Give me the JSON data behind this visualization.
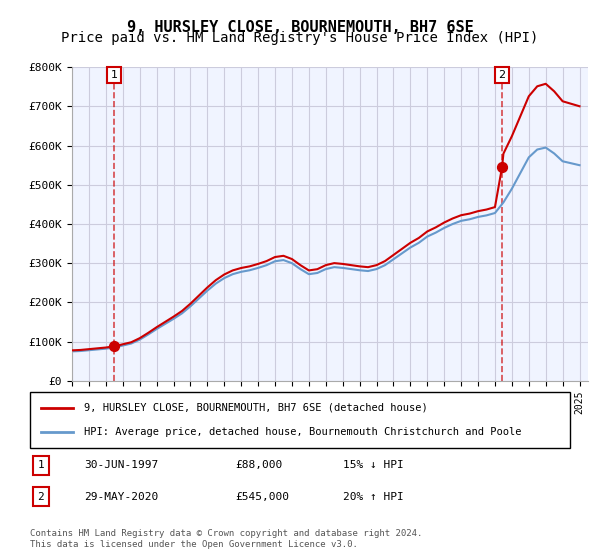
{
  "title": "9, HURSLEY CLOSE, BOURNEMOUTH, BH7 6SE",
  "subtitle": "Price paid vs. HM Land Registry's House Price Index (HPI)",
  "ylabel_ticks": [
    "£0",
    "£100K",
    "£200K",
    "£300K",
    "£400K",
    "£500K",
    "£600K",
    "£700K",
    "£800K"
  ],
  "ylim": [
    0,
    800000
  ],
  "xlim_start": 1995.0,
  "xlim_end": 2025.5,
  "sale1": {
    "date_num": 1997.5,
    "price": 88000,
    "label": "1"
  },
  "sale2": {
    "date_num": 2020.42,
    "price": 545000,
    "label": "2"
  },
  "sale1_info": "30-JUN-1997    £88,000    15% ↓ HPI",
  "sale2_info": "29-MAY-2020    £545,000    20% ↑ HPI",
  "legend_line1": "9, HURSLEY CLOSE, BOURNEMOUTH, BH7 6SE (detached house)",
  "legend_line2": "HPI: Average price, detached house, Bournemouth Christchurch and Poole",
  "footer": "Contains HM Land Registry data © Crown copyright and database right 2024.\nThis data is licensed under the Open Government Licence v3.0.",
  "line_color": "#cc0000",
  "hpi_color": "#6699cc",
  "bg_color": "#f0f4ff",
  "grid_color": "#ccccdd",
  "title_fontsize": 11,
  "subtitle_fontsize": 10
}
